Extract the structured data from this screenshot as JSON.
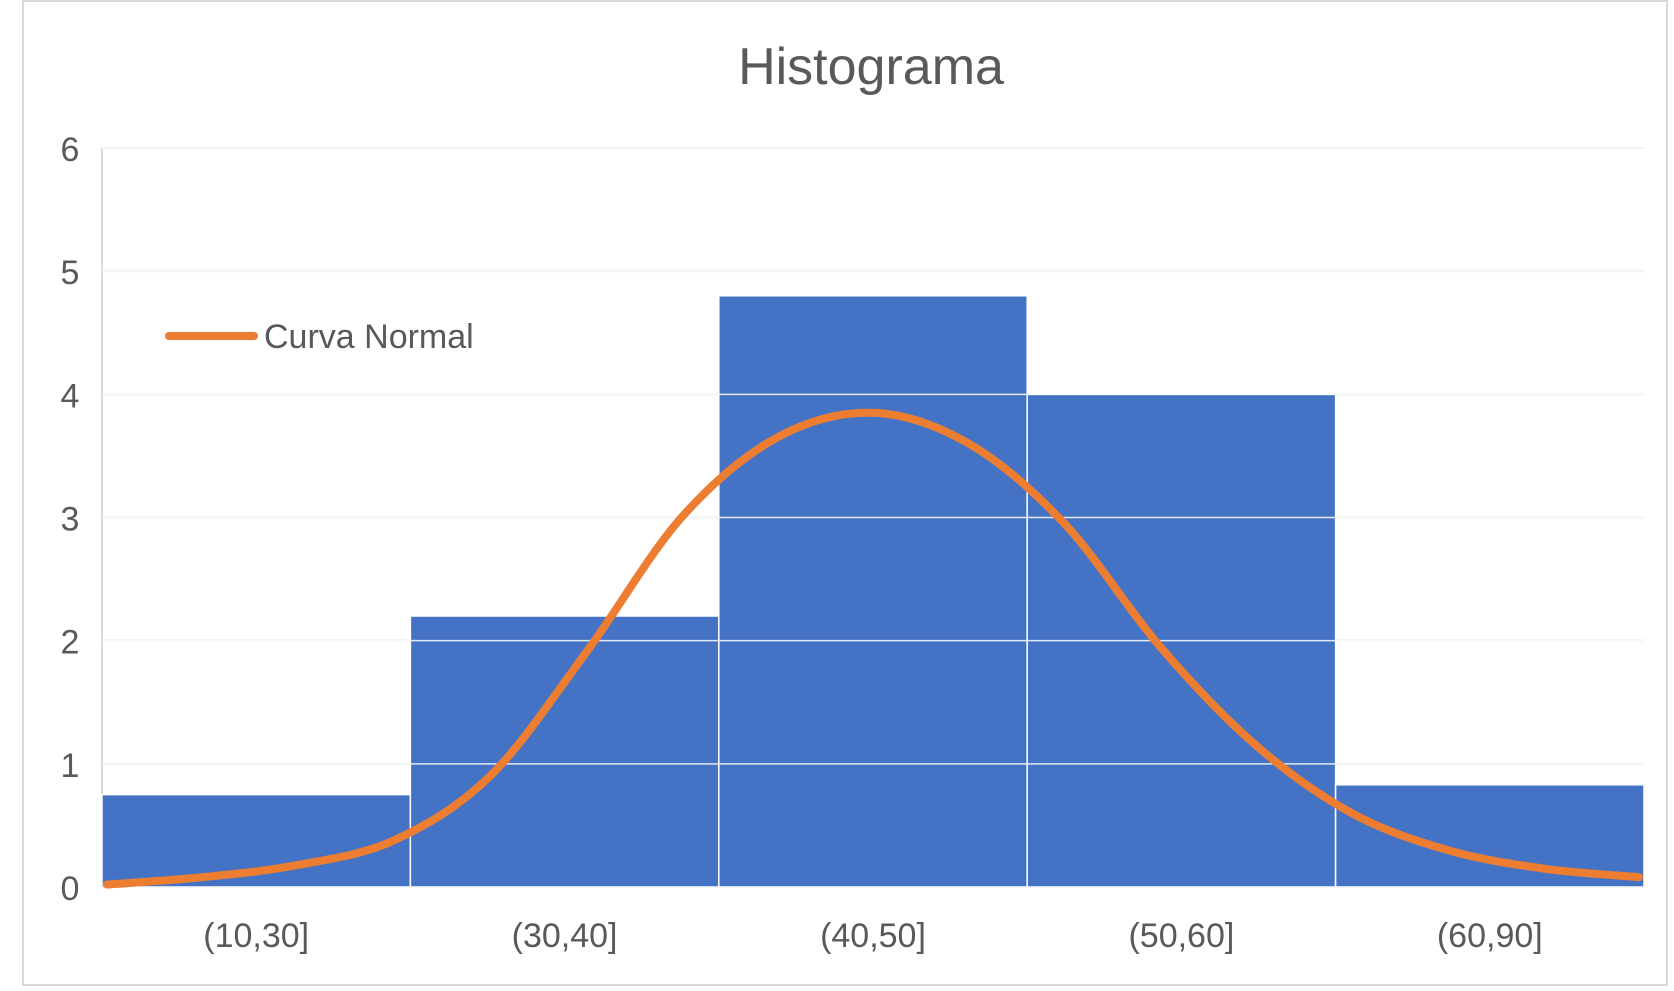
{
  "chart_data": {
    "type": "bar",
    "title": "Histograma",
    "categories": [
      "(10,30]",
      "(30,40]",
      "(40,50]",
      "(50,60]",
      "(60,90]"
    ],
    "values": [
      0.75,
      2.2,
      4.8,
      4.0,
      0.83
    ],
    "ylim": [
      0,
      6
    ],
    "yticks": [
      "0",
      "1",
      "2",
      "3",
      "4",
      "5",
      "6"
    ],
    "grid": true,
    "bar_color": "#4472C4",
    "legend": {
      "position": "top-left",
      "entries": [
        {
          "name": "Curva Normal",
          "color": "#ED7D31"
        }
      ]
    },
    "series": [
      {
        "name": "Curva Normal",
        "type": "line",
        "color": "#ED7D31",
        "x": [
          10,
          15,
          20,
          25,
          30,
          35,
          40,
          45,
          50,
          55,
          60,
          65,
          70,
          75,
          80,
          85,
          90
        ],
        "y": [
          0.02,
          0.08,
          0.18,
          0.38,
          0.9,
          1.9,
          3.0,
          3.65,
          3.85,
          3.6,
          2.95,
          1.95,
          1.15,
          0.6,
          0.3,
          0.15,
          0.08
        ]
      }
    ]
  }
}
